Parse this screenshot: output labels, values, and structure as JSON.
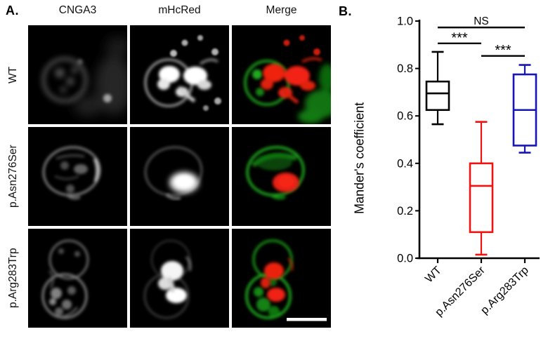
{
  "figure": {
    "panel_a": {
      "label": "A.",
      "column_headers": [
        "CNGA3",
        "mHcRed",
        "Merge"
      ],
      "row_labels": [
        "WT",
        "p.Asn276Ser",
        "p.Arg283Trp"
      ],
      "has_scale_bar": true
    },
    "panel_b": {
      "label": "B."
    }
  },
  "chart_data": {
    "type": "boxplot",
    "title": "",
    "xlabel": "",
    "ylabel": "Mander's coefficient",
    "ylim": [
      0.0,
      1.0
    ],
    "grid": false,
    "yticks": [
      {
        "label": "0.0",
        "value": 0.0
      },
      {
        "label": "0.2",
        "value": 0.2
      },
      {
        "label": "0.4",
        "value": 0.4
      },
      {
        "label": "0.6",
        "value": 0.6
      },
      {
        "label": "0.8",
        "value": 0.8
      },
      {
        "label": "1.0",
        "value": 1.0
      }
    ],
    "categories": [
      "WT",
      "p.Asn276Ser",
      "p.Arg283Trp"
    ],
    "series": [
      {
        "name": "WT",
        "color": "#000000",
        "whisker_low": 0.565,
        "q1": 0.625,
        "median": 0.695,
        "q3": 0.745,
        "whisker_high": 0.87
      },
      {
        "name": "p.Asn276Ser",
        "color": "#ee1411",
        "whisker_low": 0.015,
        "q1": 0.11,
        "median": 0.305,
        "q3": 0.4,
        "whisker_high": 0.575
      },
      {
        "name": "p.Arg283Trp",
        "color": "#1616b6",
        "whisker_low": 0.445,
        "q1": 0.475,
        "median": 0.625,
        "q3": 0.775,
        "whisker_high": 0.815
      }
    ],
    "significance": [
      {
        "a": 0,
        "b": 2,
        "label": "NS",
        "y": 0.973
      },
      {
        "a": 0,
        "b": 1,
        "label": "***",
        "y": 0.906
      },
      {
        "a": 1,
        "b": 2,
        "label": "***",
        "y": 0.853
      }
    ]
  }
}
